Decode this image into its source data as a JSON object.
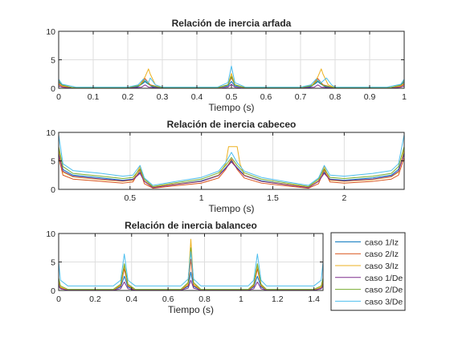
{
  "series_legend": [
    {
      "name": "caso 1/Iz",
      "color": "#0072BD"
    },
    {
      "name": "caso 2/Iz",
      "color": "#D95319"
    },
    {
      "name": "caso 3/Iz",
      "color": "#EDB120"
    },
    {
      "name": "caso 1/De",
      "color": "#7E2F8E"
    },
    {
      "name": "caso 2/De",
      "color": "#77AC30"
    },
    {
      "name": "caso 3/De",
      "color": "#4DBEEE"
    }
  ],
  "chart_data": [
    {
      "type": "line",
      "title": "Relación de inercia arfada",
      "xlabel": "Tiempo (s)",
      "ylabel": "",
      "xlim": [
        0,
        1.0
      ],
      "ylim": [
        0,
        10
      ],
      "xticks": [
        0,
        0.1,
        0.2,
        0.3,
        0.4,
        0.5,
        0.6,
        0.7,
        0.8,
        0.9,
        1
      ],
      "xtick_labels": [
        "0",
        "0.1",
        "0.2",
        "0.3",
        "0.4",
        "0.5",
        "0.6",
        "0.7",
        "0.8",
        "0.9",
        "1"
      ],
      "yticks": [
        0,
        5,
        10
      ],
      "grid": true,
      "series": [
        {
          "color": "#0072BD",
          "x": [
            0,
            0.01,
            0.04,
            0.2,
            0.23,
            0.245,
            0.25,
            0.255,
            0.27,
            0.3,
            0.46,
            0.49,
            0.5,
            0.51,
            0.54,
            0.7,
            0.73,
            0.745,
            0.75,
            0.755,
            0.77,
            0.8,
            0.96,
            0.99,
            1.0
          ],
          "y": [
            1.1,
            0.5,
            0.1,
            0.1,
            0.3,
            0.9,
            1.2,
            0.9,
            0.3,
            0.1,
            0.1,
            0.4,
            1.2,
            0.4,
            0.1,
            0.1,
            0.3,
            0.9,
            1.2,
            0.9,
            0.3,
            0.1,
            0.1,
            0.5,
            1.1
          ]
        },
        {
          "color": "#D95319",
          "x": [
            0,
            0.01,
            0.04,
            0.2,
            0.235,
            0.25,
            0.265,
            0.3,
            0.46,
            0.49,
            0.5,
            0.51,
            0.54,
            0.7,
            0.735,
            0.75,
            0.765,
            0.8,
            0.96,
            0.99,
            1.0
          ],
          "y": [
            0.7,
            0.3,
            0.05,
            0.05,
            0.6,
            1.7,
            0.6,
            0.05,
            0.05,
            0.6,
            1.9,
            0.6,
            0.05,
            0.05,
            0.6,
            1.7,
            0.6,
            0.05,
            0.05,
            0.3,
            0.7
          ]
        },
        {
          "color": "#EDB120",
          "x": [
            0,
            0.01,
            0.04,
            0.2,
            0.235,
            0.25,
            0.26,
            0.265,
            0.28,
            0.3,
            0.46,
            0.49,
            0.5,
            0.51,
            0.54,
            0.7,
            0.735,
            0.75,
            0.76,
            0.765,
            0.78,
            0.8,
            0.96,
            0.99,
            1.0
          ],
          "y": [
            0.9,
            0.4,
            0.1,
            0.1,
            0.6,
            2.0,
            3.4,
            2.5,
            0.6,
            0.1,
            0.1,
            0.6,
            2.6,
            0.6,
            0.1,
            0.1,
            0.6,
            2.0,
            3.4,
            2.5,
            0.6,
            0.1,
            0.1,
            0.4,
            0.9
          ]
        },
        {
          "color": "#7E2F8E",
          "x": [
            0,
            0.01,
            0.04,
            0.2,
            0.24,
            0.25,
            0.26,
            0.3,
            0.47,
            0.49,
            0.5,
            0.51,
            0.53,
            0.7,
            0.74,
            0.75,
            0.76,
            0.8,
            0.96,
            0.99,
            1.0
          ],
          "y": [
            0.4,
            0.2,
            0.03,
            0.03,
            0.2,
            0.6,
            0.2,
            0.03,
            0.03,
            0.2,
            0.7,
            0.2,
            0.03,
            0.03,
            0.2,
            0.6,
            0.2,
            0.03,
            0.03,
            0.2,
            0.4
          ]
        },
        {
          "color": "#77AC30",
          "x": [
            0,
            0.01,
            0.04,
            0.2,
            0.235,
            0.25,
            0.265,
            0.3,
            0.46,
            0.49,
            0.5,
            0.51,
            0.54,
            0.7,
            0.735,
            0.75,
            0.765,
            0.8,
            0.96,
            0.99,
            1.0
          ],
          "y": [
            1.4,
            0.6,
            0.1,
            0.1,
            0.5,
            1.4,
            0.5,
            0.1,
            0.1,
            0.6,
            2.1,
            0.6,
            0.1,
            0.1,
            0.5,
            1.4,
            0.5,
            0.1,
            0.1,
            0.6,
            1.4
          ]
        },
        {
          "color": "#4DBEEE",
          "x": [
            0,
            0.01,
            0.05,
            0.2,
            0.23,
            0.245,
            0.26,
            0.265,
            0.28,
            0.3,
            0.46,
            0.49,
            0.5,
            0.51,
            0.54,
            0.7,
            0.73,
            0.745,
            0.76,
            0.775,
            0.79,
            0.8,
            0.95,
            0.99,
            1.0
          ],
          "y": [
            1.6,
            0.7,
            0.2,
            0.2,
            0.6,
            1.6,
            1.0,
            1.8,
            0.6,
            0.2,
            0.2,
            1.0,
            3.9,
            1.0,
            0.2,
            0.2,
            0.6,
            1.6,
            1.0,
            1.8,
            0.6,
            0.2,
            0.2,
            0.7,
            1.6
          ]
        }
      ]
    },
    {
      "type": "line",
      "title": "Relación de inercia cabeceo",
      "xlabel": "Tiempo (s)",
      "ylabel": "",
      "xlim": [
        0,
        2.42
      ],
      "ylim": [
        0,
        10
      ],
      "xticks": [
        0.5,
        1,
        1.5,
        2
      ],
      "xtick_labels": [
        "0.5",
        "1",
        "1.5",
        "2"
      ],
      "yticks": [
        0,
        5,
        10
      ],
      "grid": true,
      "series": [
        {
          "color": "#0072BD",
          "x": [
            0,
            0.03,
            0.1,
            0.3,
            0.45,
            0.52,
            0.57,
            0.6,
            0.66,
            0.8,
            1.0,
            1.12,
            1.17,
            1.21,
            1.25,
            1.3,
            1.42,
            1.6,
            1.75,
            1.82,
            1.86,
            1.9,
            2.0,
            2.2,
            2.33,
            2.38,
            2.42
          ],
          "y": [
            6.5,
            3.5,
            2.5,
            2.0,
            1.6,
            1.8,
            3.0,
            1.5,
            0.3,
            0.9,
            1.5,
            2.5,
            3.8,
            5.0,
            3.8,
            2.5,
            1.5,
            0.9,
            0.3,
            1.5,
            3.0,
            1.8,
            1.6,
            2.0,
            2.5,
            3.5,
            6.5
          ]
        },
        {
          "color": "#D95319",
          "x": [
            0,
            0.03,
            0.1,
            0.3,
            0.45,
            0.52,
            0.57,
            0.6,
            0.66,
            0.8,
            1.0,
            1.12,
            1.17,
            1.21,
            1.25,
            1.3,
            1.42,
            1.6,
            1.75,
            1.82,
            1.86,
            1.9,
            2.0,
            2.2,
            2.33,
            2.38,
            2.42
          ],
          "y": [
            5.6,
            2.5,
            1.8,
            1.4,
            1.1,
            1.3,
            3.4,
            1.0,
            0.2,
            0.6,
            1.1,
            2.0,
            3.5,
            5.3,
            3.5,
            2.0,
            1.1,
            0.6,
            0.2,
            1.0,
            3.4,
            1.3,
            1.1,
            1.4,
            1.8,
            2.5,
            5.6
          ]
        },
        {
          "color": "#EDB120",
          "x": [
            0,
            0.03,
            0.1,
            0.3,
            0.45,
            0.52,
            0.57,
            0.6,
            0.66,
            0.8,
            1.0,
            1.12,
            1.17,
            1.19,
            1.25,
            1.27,
            1.3,
            1.42,
            1.6,
            1.75,
            1.82,
            1.86,
            1.9,
            2.0,
            2.2,
            2.33,
            2.38,
            2.42
          ],
          "y": [
            7.0,
            3.0,
            2.2,
            1.7,
            1.4,
            1.6,
            4.0,
            1.5,
            0.4,
            0.9,
            1.4,
            2.5,
            4.5,
            7.5,
            7.5,
            4.5,
            2.5,
            1.4,
            0.9,
            0.4,
            1.5,
            4.0,
            1.6,
            1.4,
            1.7,
            2.2,
            3.0,
            7.0
          ]
        },
        {
          "color": "#7E2F8E",
          "x": [
            0,
            0.03,
            0.1,
            0.3,
            0.45,
            0.52,
            0.57,
            0.6,
            0.66,
            0.8,
            1.0,
            1.12,
            1.17,
            1.21,
            1.25,
            1.3,
            1.42,
            1.6,
            1.75,
            1.82,
            1.86,
            1.9,
            2.0,
            2.2,
            2.33,
            2.38,
            2.42
          ],
          "y": [
            6.2,
            3.2,
            2.3,
            1.8,
            1.5,
            1.7,
            2.8,
            1.4,
            0.3,
            0.8,
            1.4,
            2.4,
            3.7,
            4.8,
            3.7,
            2.4,
            1.4,
            0.8,
            0.3,
            1.4,
            2.8,
            1.7,
            1.5,
            1.8,
            2.3,
            3.2,
            6.2
          ]
        },
        {
          "color": "#77AC30",
          "x": [
            0,
            0.03,
            0.1,
            0.3,
            0.45,
            0.52,
            0.57,
            0.6,
            0.66,
            0.8,
            1.0,
            1.12,
            1.17,
            1.21,
            1.25,
            1.3,
            1.42,
            1.6,
            1.75,
            1.82,
            1.86,
            1.9,
            2.0,
            2.2,
            2.33,
            2.38,
            2.42
          ],
          "y": [
            7.5,
            4.0,
            2.8,
            2.3,
            1.9,
            2.1,
            3.6,
            1.8,
            0.5,
            1.1,
            1.8,
            2.9,
            4.2,
            5.6,
            4.2,
            2.9,
            1.8,
            1.1,
            0.5,
            1.8,
            3.6,
            2.1,
            1.9,
            2.3,
            2.8,
            4.0,
            7.5
          ]
        },
        {
          "color": "#4DBEEE",
          "x": [
            0,
            0.03,
            0.1,
            0.3,
            0.45,
            0.52,
            0.57,
            0.6,
            0.66,
            0.8,
            1.0,
            1.12,
            1.17,
            1.21,
            1.25,
            1.3,
            1.42,
            1.6,
            1.75,
            1.82,
            1.86,
            1.9,
            2.0,
            2.2,
            2.33,
            2.38,
            2.42
          ],
          "y": [
            9.6,
            4.5,
            3.3,
            2.8,
            2.3,
            2.5,
            4.2,
            2.0,
            0.7,
            1.3,
            2.1,
            3.2,
            4.7,
            6.5,
            4.7,
            3.2,
            2.1,
            1.3,
            0.7,
            2.0,
            4.2,
            2.5,
            2.3,
            2.8,
            3.3,
            4.5,
            9.6
          ]
        }
      ]
    },
    {
      "type": "line",
      "title": "Relación de inercia balanceo",
      "xlabel": "Tiempo (s)",
      "ylabel": "",
      "xlim": [
        0,
        1.45
      ],
      "ylim": [
        0,
        10
      ],
      "xticks": [
        0,
        0.2,
        0.4,
        0.6,
        0.8,
        1,
        1.2,
        1.4
      ],
      "xtick_labels": [
        "0",
        "0.2",
        "0.4",
        "0.6",
        "0.8",
        "1",
        "1.2",
        "1.4"
      ],
      "yticks": [
        0,
        5,
        10
      ],
      "grid": true,
      "series": [
        {
          "color": "#0072BD",
          "x": [
            0,
            0.01,
            0.05,
            0.3,
            0.34,
            0.36,
            0.38,
            0.42,
            0.67,
            0.71,
            0.725,
            0.74,
            0.78,
            1.04,
            1.07,
            1.09,
            1.11,
            1.14,
            1.4,
            1.44,
            1.45
          ],
          "y": [
            1.2,
            0.4,
            0.1,
            0.1,
            0.6,
            2.5,
            0.6,
            0.1,
            0.1,
            0.7,
            3.2,
            0.7,
            0.1,
            0.1,
            0.6,
            2.5,
            0.6,
            0.1,
            0.1,
            0.4,
            1.2
          ]
        },
        {
          "color": "#D95319",
          "x": [
            0,
            0.01,
            0.05,
            0.3,
            0.34,
            0.36,
            0.38,
            0.42,
            0.67,
            0.71,
            0.725,
            0.74,
            0.78,
            1.04,
            1.07,
            1.09,
            1.11,
            1.14,
            1.4,
            1.44,
            1.45
          ],
          "y": [
            1.5,
            0.5,
            0.1,
            0.1,
            0.8,
            3.8,
            0.8,
            0.1,
            0.1,
            0.9,
            5.5,
            0.9,
            0.1,
            0.1,
            0.8,
            3.8,
            0.8,
            0.1,
            0.1,
            0.5,
            1.5
          ]
        },
        {
          "color": "#EDB120",
          "x": [
            0,
            0.01,
            0.05,
            0.3,
            0.34,
            0.36,
            0.38,
            0.42,
            0.67,
            0.71,
            0.725,
            0.74,
            0.78,
            1.04,
            1.07,
            1.09,
            1.11,
            1.14,
            1.4,
            1.44,
            1.45
          ],
          "y": [
            1.8,
            0.6,
            0.1,
            0.1,
            1.0,
            4.4,
            1.0,
            0.1,
            0.1,
            1.2,
            9.0,
            1.2,
            0.1,
            0.1,
            1.0,
            4.4,
            1.0,
            0.1,
            0.1,
            0.6,
            1.8
          ]
        },
        {
          "color": "#7E2F8E",
          "x": [
            0,
            0.01,
            0.05,
            0.3,
            0.34,
            0.36,
            0.38,
            0.42,
            0.67,
            0.71,
            0.725,
            0.74,
            0.78,
            1.04,
            1.07,
            1.09,
            1.11,
            1.14,
            1.4,
            1.44,
            1.45
          ],
          "y": [
            0.8,
            0.3,
            0.05,
            0.05,
            0.3,
            1.5,
            0.3,
            0.05,
            0.05,
            0.4,
            1.8,
            0.4,
            0.05,
            0.05,
            0.3,
            1.5,
            0.3,
            0.05,
            0.05,
            0.3,
            0.8
          ]
        },
        {
          "color": "#77AC30",
          "x": [
            0,
            0.01,
            0.05,
            0.3,
            0.34,
            0.36,
            0.38,
            0.42,
            0.67,
            0.71,
            0.725,
            0.74,
            0.78,
            1.04,
            1.07,
            1.09,
            1.11,
            1.14,
            1.4,
            1.44,
            1.45
          ],
          "y": [
            2.2,
            0.8,
            0.2,
            0.2,
            1.1,
            4.7,
            1.1,
            0.2,
            0.2,
            1.4,
            7.5,
            1.4,
            0.2,
            0.2,
            1.1,
            4.7,
            1.1,
            0.2,
            0.2,
            0.8,
            2.2
          ]
        },
        {
          "color": "#4DBEEE",
          "x": [
            0,
            0.01,
            0.05,
            0.3,
            0.34,
            0.36,
            0.38,
            0.42,
            0.67,
            0.71,
            0.725,
            0.74,
            0.78,
            1.04,
            1.07,
            1.09,
            1.11,
            1.14,
            1.4,
            1.44,
            1.45
          ],
          "y": [
            5.0,
            1.8,
            0.8,
            0.8,
            1.8,
            6.4,
            1.8,
            0.8,
            0.8,
            2.0,
            6.8,
            2.0,
            0.8,
            0.8,
            1.8,
            6.4,
            1.8,
            0.8,
            0.8,
            1.8,
            5.0
          ]
        }
      ]
    }
  ]
}
